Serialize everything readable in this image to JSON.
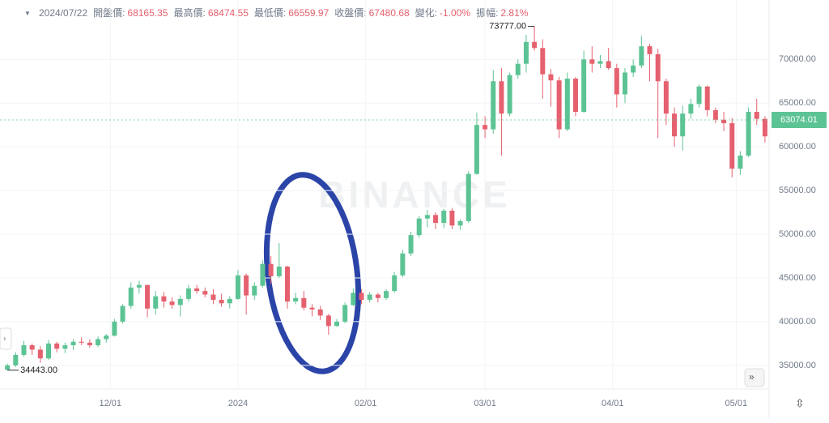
{
  "chart_data": {
    "type": "candlestick",
    "header": {
      "date": "2024/07/22",
      "open_label": "開盤價:",
      "open": "68165.35",
      "high_label": "最高價:",
      "high": "68474.55",
      "low_label": "最低價:",
      "low": "66559.97",
      "close_label": "收盤價:",
      "close": "67480.68",
      "change_label": "變化:",
      "change": "-1.00%",
      "amplitude_label": "振幅:",
      "amplitude": "2.81%"
    },
    "watermark": "BINANCE",
    "max_label": "73777.00",
    "min_label": "34443.00",
    "last_price": {
      "value": 63074.01,
      "label": "63074.01"
    },
    "up_color": "#5cc394",
    "down_color": "#e5616f",
    "grid": true,
    "ylim": [
      32300,
      74200
    ],
    "yticks": [
      {
        "value": 35000,
        "label": "35000.00"
      },
      {
        "value": 40000,
        "label": "40000.00"
      },
      {
        "value": 45000,
        "label": "45000.00"
      },
      {
        "value": 50000,
        "label": "50000.00"
      },
      {
        "value": 55000,
        "label": "55000.00"
      },
      {
        "value": 60000,
        "label": "60000.00"
      },
      {
        "value": 65000,
        "label": "65000.00"
      },
      {
        "value": 70000,
        "label": "70000.00"
      }
    ],
    "xlim": [
      -0.9,
      92.5
    ],
    "xticks": [
      {
        "value": 12.5,
        "label": "12/01"
      },
      {
        "value": 28,
        "label": "2024"
      },
      {
        "value": 43.5,
        "label": "02/01"
      },
      {
        "value": 58,
        "label": "03/01"
      },
      {
        "value": 73.5,
        "label": "04/01"
      },
      {
        "value": 88.5,
        "label": "05/01"
      }
    ],
    "candles": [
      [
        34500,
        35200,
        34443,
        35000
      ],
      [
        35000,
        36500,
        34800,
        36200
      ],
      [
        36200,
        37800,
        36000,
        37300
      ],
      [
        37300,
        37500,
        36200,
        36800
      ],
      [
        36800,
        37200,
        35300,
        35800
      ],
      [
        35800,
        37900,
        35600,
        37500
      ],
      [
        37500,
        37700,
        36500,
        36900
      ],
      [
        36900,
        37600,
        36400,
        37300
      ],
      [
        37300,
        38000,
        36800,
        37700
      ],
      [
        37700,
        38200,
        37300,
        37600
      ],
      [
        37600,
        38000,
        37000,
        37300
      ],
      [
        37300,
        38300,
        37100,
        38000
      ],
      [
        38000,
        38600,
        37600,
        38400
      ],
      [
        38400,
        40300,
        38300,
        40000
      ],
      [
        40000,
        42000,
        39800,
        41800
      ],
      [
        41800,
        44500,
        41500,
        43900
      ],
      [
        43900,
        44700,
        43200,
        44200
      ],
      [
        44200,
        44200,
        40500,
        41500
      ],
      [
        41500,
        43500,
        40800,
        42900
      ],
      [
        42900,
        43400,
        41600,
        42300
      ],
      [
        42300,
        42800,
        41500,
        41900
      ],
      [
        41900,
        43000,
        40600,
        42600
      ],
      [
        42600,
        44200,
        42300,
        43800
      ],
      [
        43800,
        44200,
        43200,
        43500
      ],
      [
        43500,
        43900,
        42800,
        43100
      ],
      [
        43100,
        43700,
        42000,
        42500
      ],
      [
        42500,
        43200,
        41700,
        42100
      ],
      [
        42100,
        42900,
        41500,
        42600
      ],
      [
        42600,
        45900,
        42500,
        45300
      ],
      [
        45300,
        45500,
        40800,
        43000
      ],
      [
        43000,
        44500,
        42500,
        44100
      ],
      [
        44100,
        47000,
        43900,
        46600
      ],
      [
        46600,
        47500,
        44300,
        45200
      ],
      [
        45200,
        49000,
        45000,
        46300
      ],
      [
        46300,
        46400,
        41500,
        42300
      ],
      [
        42300,
        43300,
        42000,
        42700
      ],
      [
        42700,
        43500,
        41300,
        41600
      ],
      [
        41600,
        42000,
        40600,
        41400
      ],
      [
        41400,
        41800,
        40200,
        40700
      ],
      [
        40700,
        40900,
        38500,
        39500
      ],
      [
        39500,
        40300,
        39400,
        40000
      ],
      [
        40000,
        42200,
        39800,
        41900
      ],
      [
        41900,
        43800,
        41800,
        43300
      ],
      [
        43300,
        43700,
        42000,
        42500
      ],
      [
        42500,
        43400,
        42200,
        43100
      ],
      [
        43100,
        43300,
        42200,
        42700
      ],
      [
        42700,
        43700,
        42500,
        43500
      ],
      [
        43500,
        45700,
        43300,
        45300
      ],
      [
        45300,
        48200,
        45100,
        47800
      ],
      [
        47800,
        50300,
        47500,
        49900
      ],
      [
        49900,
        52100,
        49600,
        51800
      ],
      [
        51800,
        52800,
        50800,
        52200
      ],
      [
        52200,
        52500,
        50600,
        51300
      ],
      [
        51300,
        52900,
        50700,
        52700
      ],
      [
        52700,
        53000,
        50600,
        51000
      ],
      [
        51000,
        51700,
        50500,
        51500
      ],
      [
        51500,
        57200,
        51300,
        56900
      ],
      [
        56900,
        63900,
        56800,
        62500
      ],
      [
        62500,
        63500,
        61000,
        62000
      ],
      [
        62000,
        68800,
        61500,
        67500
      ],
      [
        67500,
        69000,
        59000,
        63800
      ],
      [
        63800,
        68500,
        63500,
        68200
      ],
      [
        68200,
        70000,
        67800,
        69500
      ],
      [
        69500,
        72800,
        68500,
        72000
      ],
      [
        72000,
        73777,
        71000,
        71300
      ],
      [
        71300,
        72300,
        65500,
        68300
      ],
      [
        68300,
        68900,
        64600,
        67600
      ],
      [
        67600,
        68000,
        61000,
        62000
      ],
      [
        62000,
        68500,
        61800,
        67800
      ],
      [
        67800,
        68000,
        63500,
        64000
      ],
      [
        64000,
        71000,
        63900,
        70000
      ],
      [
        70000,
        71500,
        68500,
        69500
      ],
      [
        69500,
        70500,
        69000,
        69800
      ],
      [
        69800,
        71300,
        68800,
        69000
      ],
      [
        69000,
        69500,
        64500,
        66000
      ],
      [
        66000,
        69000,
        65000,
        68500
      ],
      [
        68500,
        70000,
        68000,
        69300
      ],
      [
        69300,
        72700,
        69000,
        71500
      ],
      [
        71500,
        71800,
        67500,
        70600
      ],
      [
        70600,
        71200,
        61000,
        67500
      ],
      [
        67500,
        67800,
        62500,
        63800
      ],
      [
        63800,
        64500,
        60000,
        61200
      ],
      [
        61200,
        64700,
        59600,
        63800
      ],
      [
        63800,
        65500,
        63200,
        64900
      ],
      [
        64900,
        67100,
        64500,
        66900
      ],
      [
        66900,
        67000,
        63500,
        64200
      ],
      [
        64200,
        64500,
        62700,
        63100
      ],
      [
        63100,
        64000,
        61800,
        62700
      ],
      [
        62700,
        63300,
        56500,
        57500
      ],
      [
        57500,
        59500,
        56800,
        59000
      ],
      [
        59000,
        64500,
        58800,
        64000
      ],
      [
        64000,
        65500,
        62500,
        63200
      ],
      [
        63200,
        63500,
        60500,
        61200
      ]
    ]
  }
}
